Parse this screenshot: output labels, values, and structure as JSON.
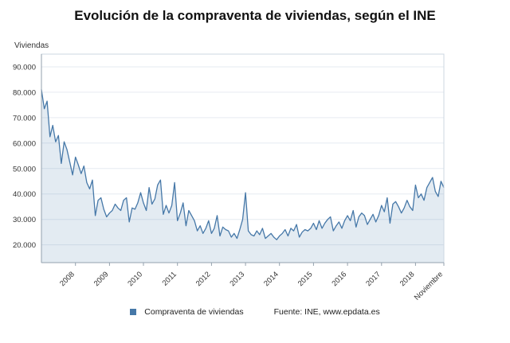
{
  "legend": {
    "label": "Compraventa de viviendas",
    "source": "Fuente: INE, www.epdata.es"
  },
  "chart_data": {
    "type": "area",
    "title": "Evolución de la compraventa de viviendas, según el INE",
    "ylabel": "Viviendas",
    "series_name": "Compraventa de viviendas",
    "color": "#4678a8",
    "fill": "rgba(70,120,168,0.15)",
    "x_start": "2007-01",
    "x_end": "2018-11",
    "ylim": [
      13000,
      95000
    ],
    "grid": "horizontal",
    "legend_position": "bottom",
    "y_ticks": [
      {
        "label": "20.000",
        "value": 20000
      },
      {
        "label": "30.000",
        "value": 30000
      },
      {
        "label": "40.000",
        "value": 40000
      },
      {
        "label": "50.000",
        "value": 50000
      },
      {
        "label": "60.000",
        "value": 60000
      },
      {
        "label": "70.000",
        "value": 70000
      },
      {
        "label": "80.000",
        "value": 80000
      },
      {
        "label": "90.000",
        "value": 90000
      }
    ],
    "x_ticks": [
      {
        "label": "2008",
        "i": 12
      },
      {
        "label": "2009",
        "i": 24
      },
      {
        "label": "2010",
        "i": 36
      },
      {
        "label": "2011",
        "i": 48
      },
      {
        "label": "2012",
        "i": 60
      },
      {
        "label": "2013",
        "i": 72
      },
      {
        "label": "2014",
        "i": 84
      },
      {
        "label": "2015",
        "i": 96
      },
      {
        "label": "2016",
        "i": 108
      },
      {
        "label": "2017",
        "i": 120
      },
      {
        "label": "2018",
        "i": 132
      },
      {
        "label": "Noviembre",
        "i": 142
      }
    ],
    "values": [
      81000,
      73500,
      76500,
      62500,
      67000,
      60500,
      63000,
      52000,
      60500,
      57500,
      52500,
      47500,
      54500,
      51500,
      48000,
      51000,
      44500,
      42000,
      45500,
      31500,
      37500,
      38500,
      34000,
      31000,
      32500,
      33500,
      36000,
      34500,
      33500,
      37500,
      38500,
      29000,
      34500,
      34000,
      36500,
      40500,
      36500,
      33500,
      42500,
      36000,
      38000,
      43500,
      45500,
      32000,
      35500,
      32500,
      35500,
      44500,
      29500,
      32500,
      36500,
      27500,
      33500,
      31500,
      29500,
      25500,
      27500,
      24500,
      26500,
      29500,
      24500,
      26500,
      31500,
      23500,
      27000,
      26000,
      25500,
      23000,
      24500,
      22500,
      26000,
      30000,
      40500,
      25500,
      24000,
      23500,
      25500,
      24000,
      26500,
      22500,
      23500,
      24500,
      23000,
      22000,
      23500,
      24500,
      26000,
      23500,
      26500,
      25500,
      28000,
      23000,
      25000,
      26000,
      25500,
      26500,
      28500,
      26000,
      29500,
      26500,
      28500,
      30000,
      31000,
      25500,
      27500,
      29000,
      26500,
      29500,
      31500,
      29500,
      33500,
      27000,
      31000,
      32500,
      31500,
      28000,
      30000,
      32000,
      29000,
      31500,
      35500,
      33000,
      38500,
      28500,
      36000,
      37000,
      35000,
      32500,
      34500,
      37500,
      35000,
      33500,
      43500,
      38500,
      40000,
      37500,
      42500,
      44500,
      46500,
      41000,
      39000,
      45000,
      42500
    ]
  }
}
